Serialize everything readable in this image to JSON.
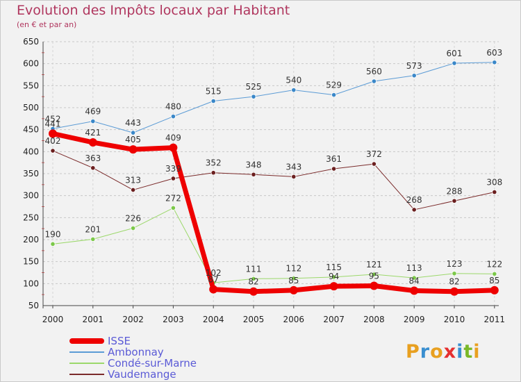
{
  "header": {
    "title": "Evolution des Impôts locaux par Habitant",
    "subtitle": "(en € et par an)"
  },
  "logo": {
    "text": "Proxiti",
    "colors": [
      "#e8a020",
      "#3a8fd0",
      "#e8a020",
      "#e53030",
      "#3a8fd0",
      "#7ab828",
      "#e8a020"
    ]
  },
  "chart_data": {
    "type": "line",
    "title": "Evolution des Impôts locaux par Habitant",
    "subtitle": "(en € et par an)",
    "xlabel": "",
    "ylabel": "",
    "x": [
      "2000",
      "2001",
      "2002",
      "2003",
      "2004",
      "2005",
      "2006",
      "2007",
      "2008",
      "2009",
      "2010",
      "2011"
    ],
    "ylim": [
      50,
      650
    ],
    "yticks": [
      50,
      100,
      150,
      200,
      250,
      300,
      350,
      400,
      450,
      500,
      550,
      600,
      650
    ],
    "grid": "horizontal dashed",
    "legend_position": "bottom-left",
    "series": [
      {
        "name": "Ambonnay",
        "color": "#5b9bd5",
        "marker": "#3a87c8",
        "width": 1,
        "values": [
          452,
          469,
          443,
          480,
          515,
          525,
          540,
          529,
          560,
          573,
          601,
          603
        ]
      },
      {
        "name": "Vaudemange",
        "color": "#7a2a2a",
        "marker": "#6b1f1f",
        "width": 1,
        "values": [
          402,
          363,
          313,
          339,
          352,
          348,
          343,
          361,
          372,
          268,
          288,
          308
        ]
      },
      {
        "name": "Condé-sur-Marne",
        "color": "#9bd86a",
        "marker": "#7cc84a",
        "width": 1,
        "values": [
          190,
          201,
          226,
          272,
          102,
          111,
          112,
          115,
          121,
          113,
          123,
          122
        ]
      },
      {
        "name": "ISSE",
        "color": "#ee0000",
        "marker": "#ee0000",
        "width": 7,
        "values": [
          441,
          421,
          405,
          409,
          87,
          82,
          85,
          94,
          95,
          84,
          82,
          85
        ]
      }
    ]
  },
  "legend": [
    {
      "label": "ISSE",
      "color": "#ee0000",
      "thickness": 8
    },
    {
      "label": "Ambonnay",
      "color": "#5b9bd5",
      "thickness": 2
    },
    {
      "label": "Condé-sur-Marne",
      "color": "#9bd86a",
      "thickness": 2
    },
    {
      "label": "Vaudemange",
      "color": "#7a2a2a",
      "thickness": 2
    }
  ]
}
